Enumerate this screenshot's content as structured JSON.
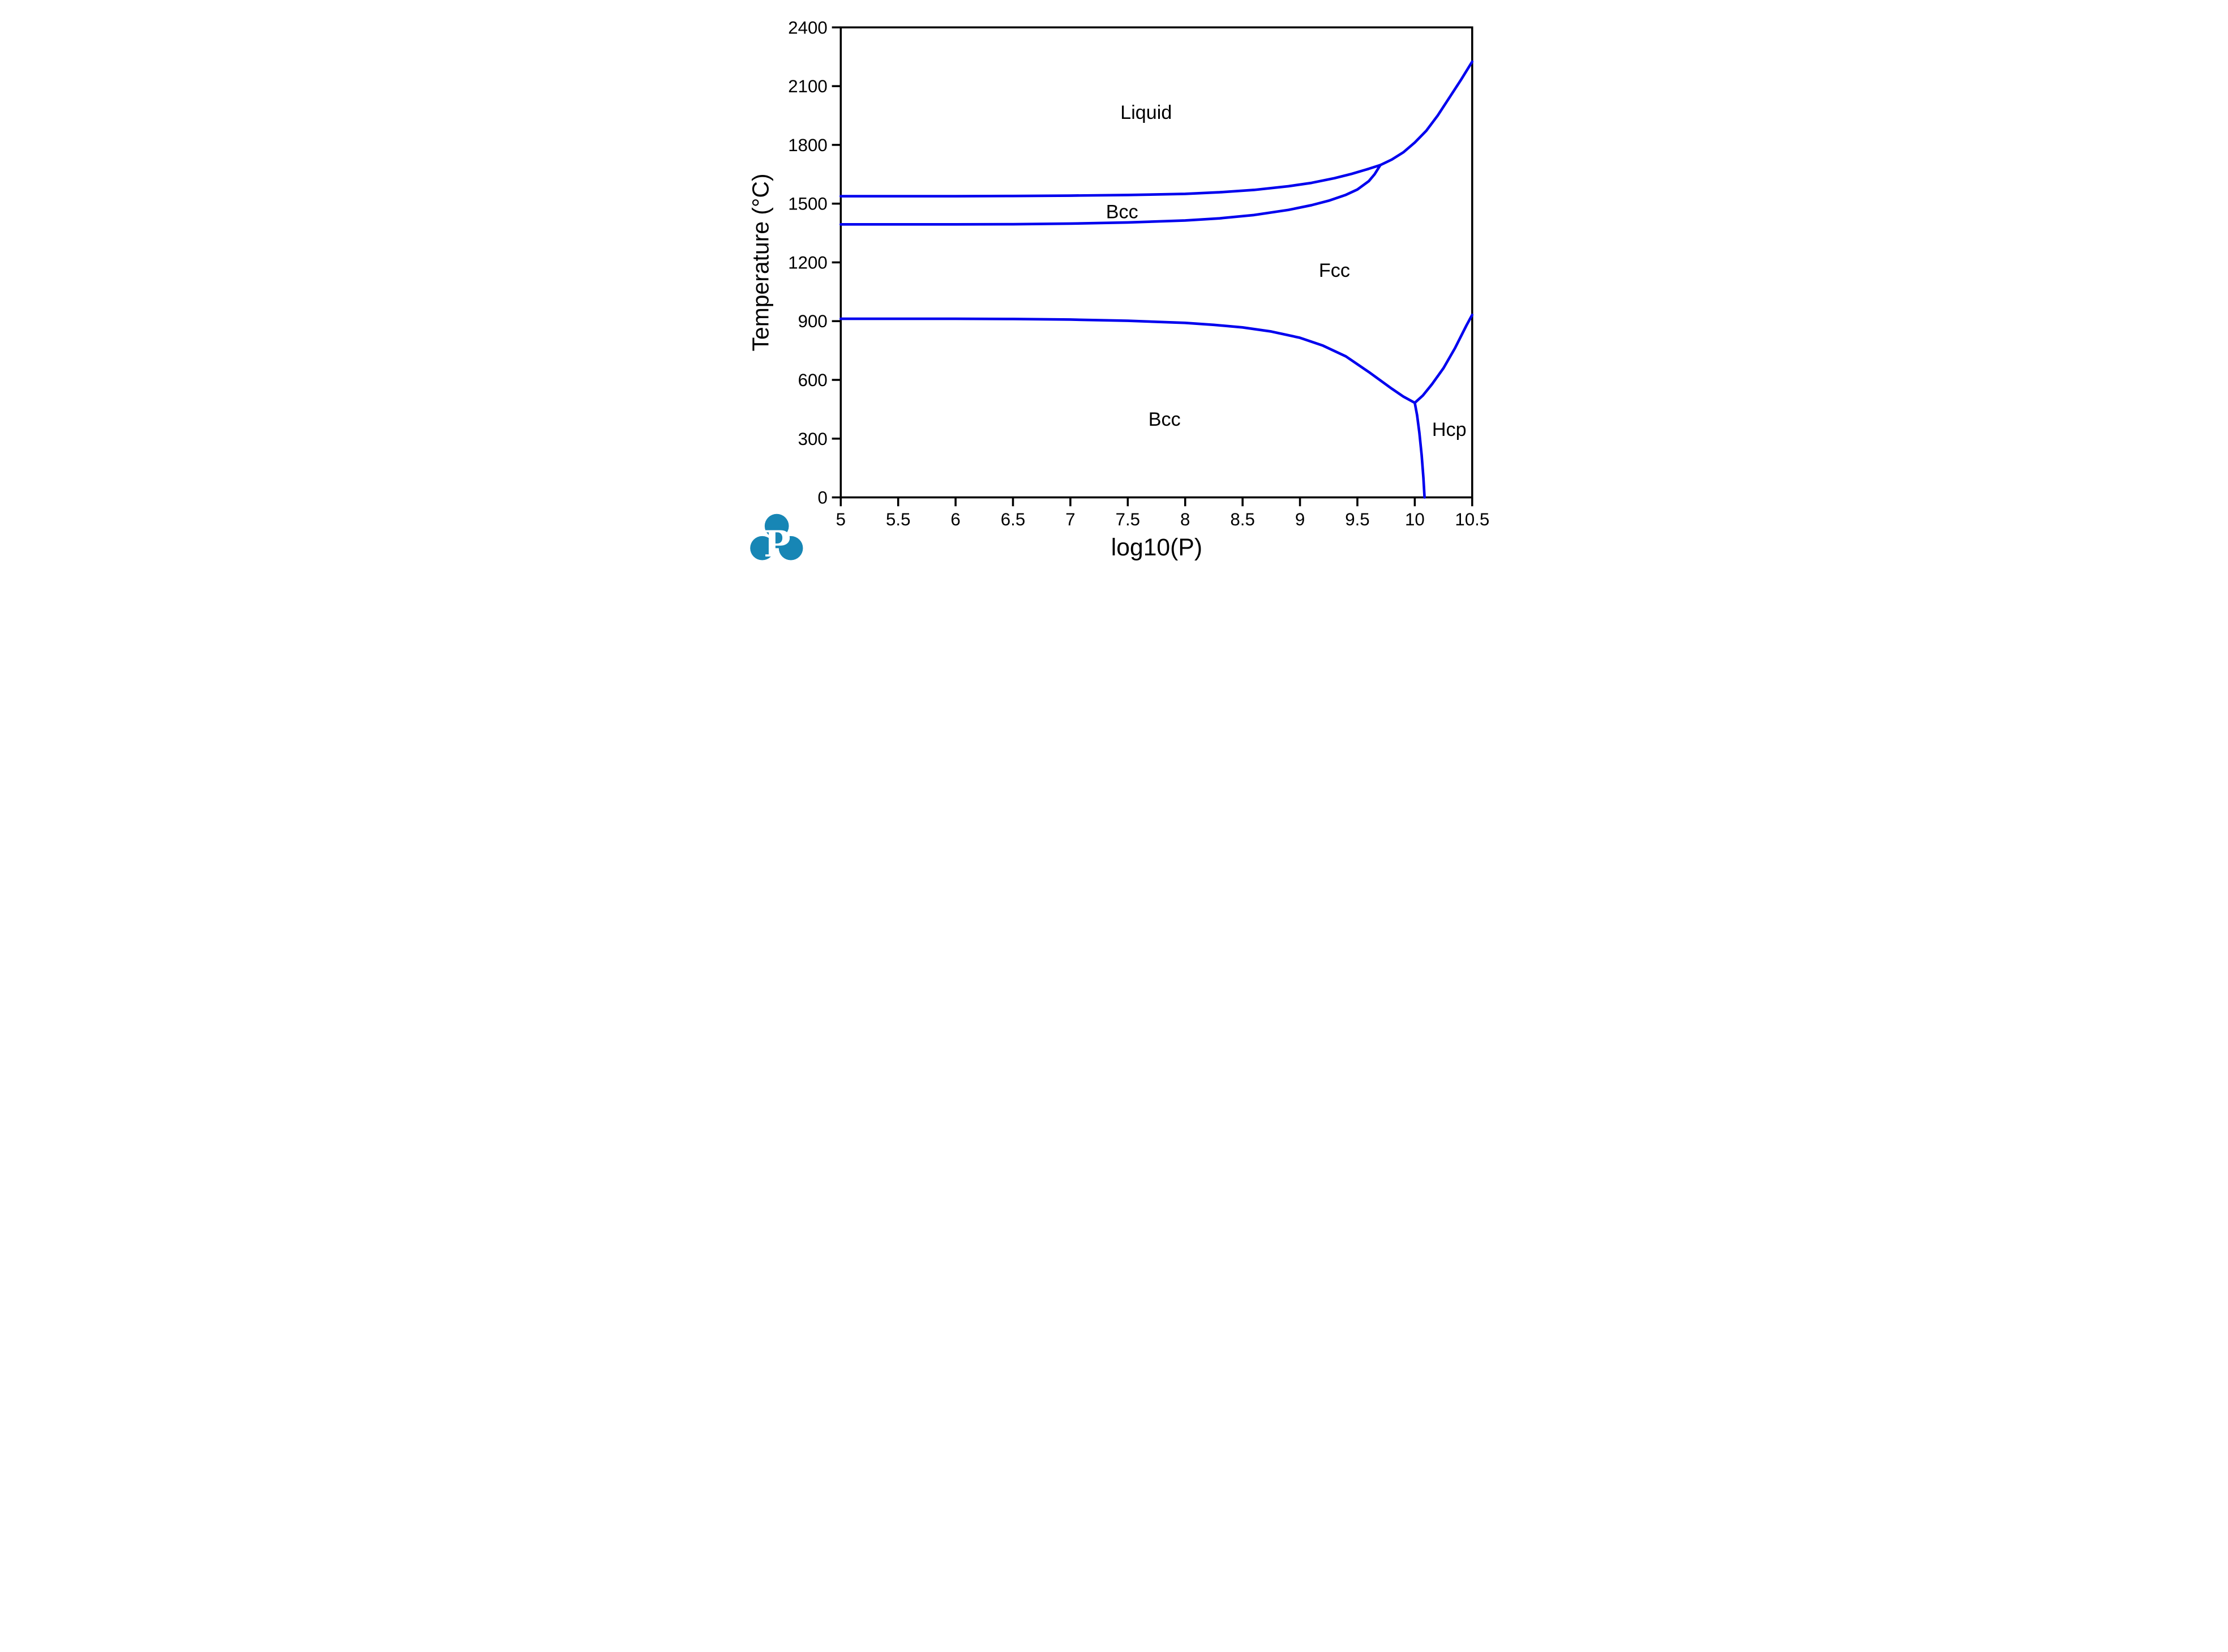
{
  "figure": {
    "background": "#ffffff",
    "frame_color": "#000000",
    "tick_color": "#000000",
    "label_color": "#000000"
  },
  "chart_data": {
    "type": "line",
    "title": "",
    "xlabel": "log10(P)",
    "ylabel": "Temperature (°C)",
    "xlim": [
      5,
      10.5
    ],
    "ylim": [
      0,
      2400
    ],
    "grid": false,
    "legend_position": "none",
    "line_color": "#0000EE",
    "x_ticks": [
      5,
      5.5,
      6,
      6.5,
      7,
      7.5,
      8,
      8.5,
      9,
      9.5,
      10,
      10.5
    ],
    "x_tick_labels": [
      "5",
      "5.5",
      "6",
      "6.5",
      "7",
      "7.5",
      "8",
      "8.5",
      "9",
      "9.5",
      "10",
      "10.5"
    ],
    "y_ticks": [
      0,
      300,
      600,
      900,
      1200,
      1500,
      1800,
      2100,
      2400
    ],
    "y_tick_labels": [
      "0",
      "300",
      "600",
      "900",
      "1200",
      "1500",
      "1800",
      "2100",
      "2400"
    ],
    "series": [
      {
        "name": "melting-boundary-bcc-fcc-liquid",
        "x": [
          5.0,
          5.5,
          6.0,
          6.5,
          7.0,
          7.5,
          8.0,
          8.3,
          8.6,
          8.9,
          9.1,
          9.3,
          9.45,
          9.6,
          9.7,
          9.8,
          9.9,
          10.0,
          10.1,
          10.2,
          10.3,
          10.4,
          10.5
        ],
        "y": [
          1538,
          1538,
          1538,
          1539,
          1541,
          1544,
          1550,
          1558,
          1570,
          1589,
          1606,
          1630,
          1652,
          1678,
          1697,
          1725,
          1762,
          1812,
          1872,
          1950,
          2040,
          2130,
          2225
        ]
      },
      {
        "name": "bcc-delta-fcc-boundary",
        "x": [
          5.0,
          5.5,
          6.0,
          6.5,
          7.0,
          7.5,
          8.0,
          8.3,
          8.6,
          8.9,
          9.1,
          9.25,
          9.4,
          9.5,
          9.6,
          9.65,
          9.7
        ],
        "y": [
          1394,
          1394,
          1394,
          1395,
          1398,
          1404,
          1414,
          1425,
          1442,
          1468,
          1492,
          1515,
          1545,
          1572,
          1615,
          1650,
          1697
        ]
      },
      {
        "name": "bcc-alpha-fcc-boundary",
        "x": [
          5.0,
          5.5,
          6.0,
          6.5,
          7.0,
          7.5,
          8.0,
          8.25,
          8.5,
          8.75,
          9.0,
          9.2,
          9.4,
          9.6,
          9.8,
          9.9,
          10.0
        ],
        "y": [
          912,
          912,
          912,
          911,
          908,
          902,
          891,
          881,
          868,
          847,
          815,
          775,
          720,
          640,
          555,
          515,
          483
        ]
      },
      {
        "name": "bcc-alpha-hcp-boundary",
        "x": [
          10.0,
          10.02,
          10.04,
          10.06,
          10.075,
          10.085
        ],
        "y": [
          483,
          420,
          330,
          215,
          100,
          0
        ]
      },
      {
        "name": "fcc-hcp-boundary",
        "x": [
          10.0,
          10.07,
          10.15,
          10.25,
          10.35,
          10.45,
          10.5
        ],
        "y": [
          483,
          520,
          578,
          660,
          762,
          878,
          932
        ]
      }
    ],
    "region_labels": [
      {
        "text": "Liquid",
        "x": 7.66,
        "y": 1964
      },
      {
        "text": "Bcc",
        "x": 7.45,
        "y": 1457
      },
      {
        "text": "Fcc",
        "x": 9.3,
        "y": 1158
      },
      {
        "text": "Bcc",
        "x": 7.82,
        "y": 398
      },
      {
        "text": "Hcp",
        "x": 10.3,
        "y": 345
      }
    ]
  },
  "logo": {
    "letter": "P",
    "color": "#1786B5",
    "letter_color": "#ffffff"
  }
}
